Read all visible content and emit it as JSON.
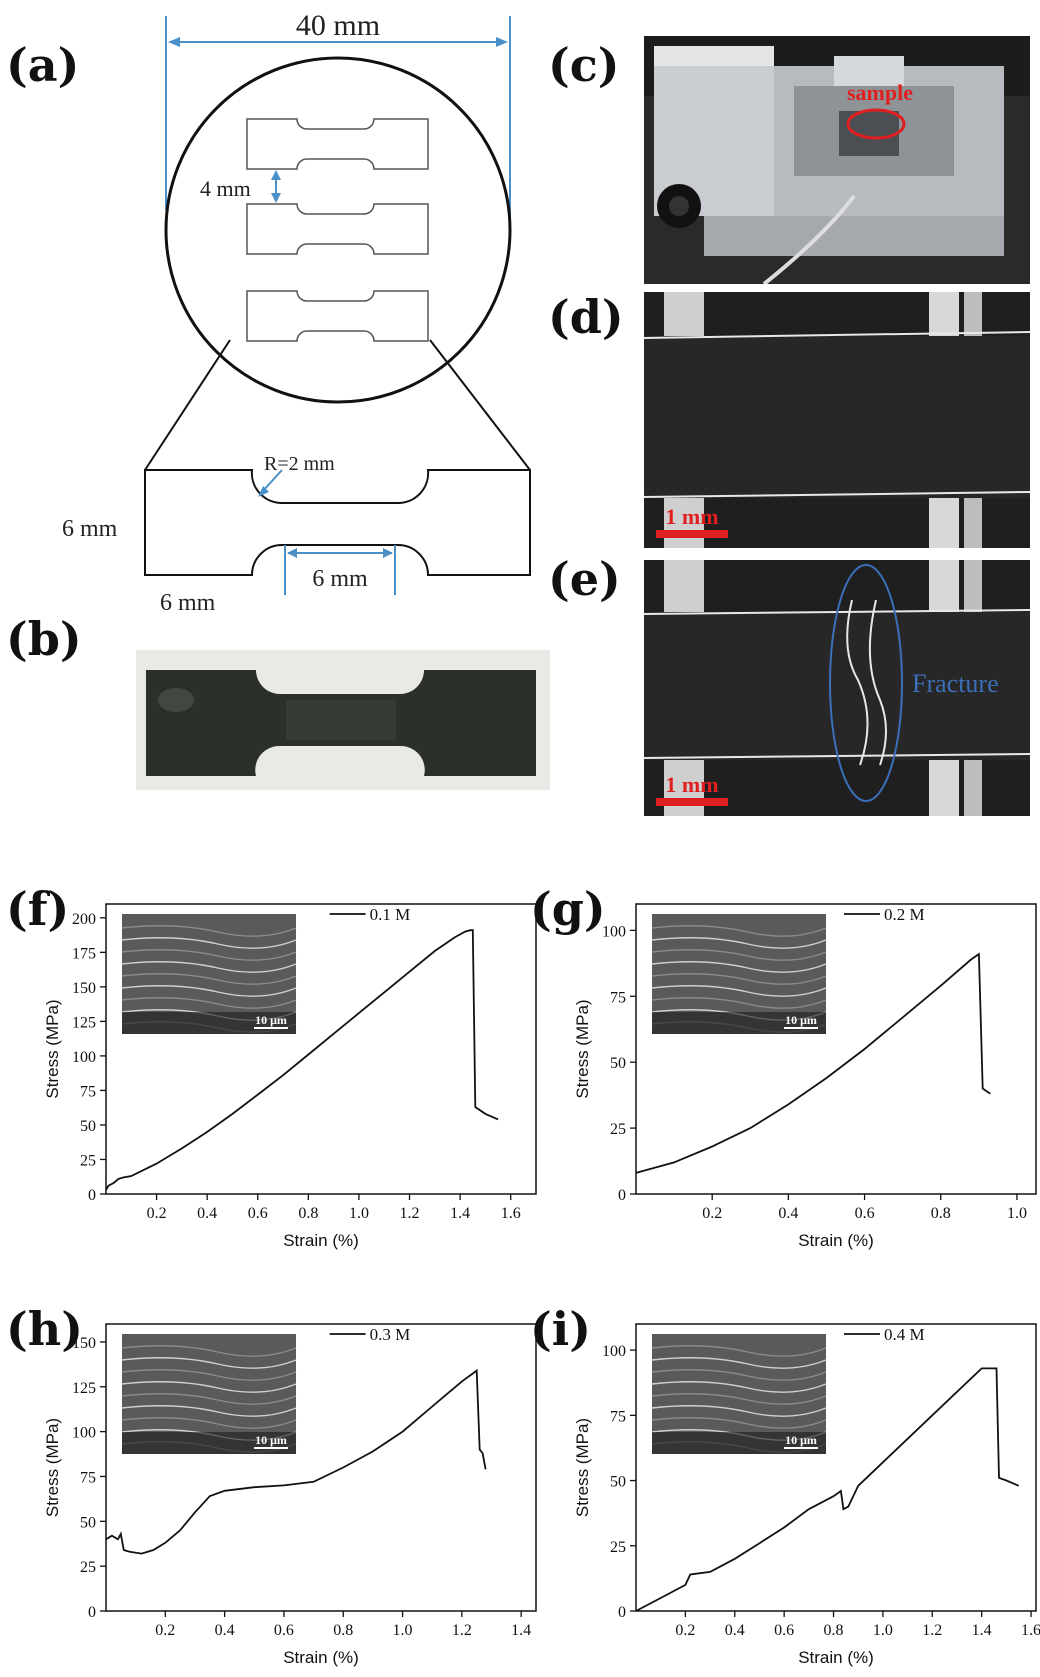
{
  "panels": {
    "a": "(a)",
    "b": "(b)",
    "c": "(c)",
    "d": "(d)",
    "e": "(e)",
    "f": "(f)",
    "g": "(g)",
    "h": "(h)",
    "i": "(i)"
  },
  "schematic": {
    "width_dim": "40 mm",
    "gap_dim": "4 mm",
    "radius_dim": "R=2 mm",
    "height_dim": "6 mm",
    "gauge_dim": "6 mm",
    "grip_dim": "6 mm"
  },
  "photos": {
    "c_label": "sample",
    "d_scale": "1 mm",
    "e_scale": "1 mm",
    "e_annotation": "Fracture"
  },
  "colors": {
    "dimension": "#4a90c8",
    "scalebar": "#e02020",
    "fracture": "#3b6fb8"
  },
  "chart_data": [
    {
      "id": "f",
      "type": "line",
      "legend": "0.1 M",
      "xlabel": "Strain (%)",
      "ylabel": "Stress (MPa)",
      "xlim": [
        0,
        1.7
      ],
      "ylim": [
        0,
        210
      ],
      "xticks": [
        "0.2",
        "0.4",
        "0.6",
        "0.8",
        "1.0",
        "1.2",
        "1.4",
        "1.6"
      ],
      "xtick_values": [
        0.2,
        0.4,
        0.6,
        0.8,
        1.0,
        1.2,
        1.4,
        1.6
      ],
      "yticks": [
        "0",
        "25",
        "50",
        "75",
        "100",
        "125",
        "150",
        "175",
        "200"
      ],
      "ytick_values": [
        0,
        25,
        50,
        75,
        100,
        125,
        150,
        175,
        200
      ],
      "inset_scale": "10 μm",
      "x": [
        0,
        0.01,
        0.03,
        0.05,
        0.07,
        0.1,
        0.2,
        0.3,
        0.4,
        0.5,
        0.6,
        0.7,
        0.8,
        0.9,
        1.0,
        1.1,
        1.2,
        1.3,
        1.38,
        1.42,
        1.44,
        1.45,
        1.46,
        1.5,
        1.55
      ],
      "y": [
        3,
        6,
        8,
        11,
        12,
        13,
        22,
        33,
        45,
        58,
        72,
        86,
        101,
        116,
        131,
        146,
        161,
        176,
        186,
        190,
        191,
        191,
        63,
        58,
        54
      ]
    },
    {
      "id": "g",
      "type": "line",
      "legend": "0.2 M",
      "xlabel": "Strain (%)",
      "ylabel": "Stress (MPa)",
      "xlim": [
        0,
        1.05
      ],
      "ylim": [
        0,
        110
      ],
      "xticks": [
        "0.2",
        "0.4",
        "0.6",
        "0.8",
        "1.0"
      ],
      "xtick_values": [
        0.2,
        0.4,
        0.6,
        0.8,
        1.0
      ],
      "yticks": [
        "0",
        "25",
        "50",
        "75",
        "100"
      ],
      "ytick_values": [
        0,
        25,
        50,
        75,
        100
      ],
      "inset_scale": "10 μm",
      "x": [
        0,
        0.1,
        0.2,
        0.3,
        0.4,
        0.5,
        0.6,
        0.7,
        0.8,
        0.88,
        0.9,
        0.91,
        0.92,
        0.93
      ],
      "y": [
        8,
        12,
        18,
        25,
        34,
        44,
        55,
        67,
        79,
        89,
        91,
        40,
        39,
        38
      ]
    },
    {
      "id": "h",
      "type": "line",
      "legend": "0.3 M",
      "xlabel": "Strain (%)",
      "ylabel": "Stress (MPa)",
      "xlim": [
        0,
        1.45
      ],
      "ylim": [
        0,
        160
      ],
      "xticks": [
        "0.2",
        "0.4",
        "0.6",
        "0.8",
        "1.0",
        "1.2",
        "1.4"
      ],
      "xtick_values": [
        0.2,
        0.4,
        0.6,
        0.8,
        1.0,
        1.2,
        1.4
      ],
      "yticks": [
        "0",
        "25",
        "50",
        "75",
        "100",
        "125",
        "150"
      ],
      "ytick_values": [
        0,
        25,
        50,
        75,
        100,
        125,
        150
      ],
      "inset_scale": "10 μm",
      "x": [
        0,
        0.02,
        0.04,
        0.05,
        0.06,
        0.08,
        0.12,
        0.16,
        0.2,
        0.25,
        0.3,
        0.35,
        0.4,
        0.5,
        0.6,
        0.7,
        0.8,
        0.9,
        1.0,
        1.1,
        1.2,
        1.25,
        1.26,
        1.27,
        1.28
      ],
      "y": [
        40,
        42,
        40,
        43,
        34,
        33,
        32,
        34,
        38,
        45,
        55,
        64,
        67,
        69,
        70,
        72,
        80,
        89,
        100,
        114,
        128,
        134,
        90,
        88,
        79
      ]
    },
    {
      "id": "i",
      "type": "line",
      "legend": "0.4 M",
      "xlabel": "Strain (%)",
      "ylabel": "Stress (MPa)",
      "xlim": [
        0,
        1.62
      ],
      "ylim": [
        0,
        110
      ],
      "xticks": [
        "0.2",
        "0.4",
        "0.6",
        "0.8",
        "1.0",
        "1.2",
        "1.4",
        "1.6"
      ],
      "xtick_values": [
        0.2,
        0.4,
        0.6,
        0.8,
        1.0,
        1.2,
        1.4,
        1.6
      ],
      "yticks": [
        "0",
        "25",
        "50",
        "75",
        "100"
      ],
      "ytick_values": [
        0,
        25,
        50,
        75,
        100
      ],
      "inset_scale": "10 μm",
      "x": [
        0,
        0.1,
        0.2,
        0.22,
        0.3,
        0.4,
        0.5,
        0.6,
        0.7,
        0.8,
        0.83,
        0.84,
        0.86,
        0.9,
        1.0,
        1.1,
        1.2,
        1.3,
        1.4,
        1.46,
        1.47,
        1.5,
        1.55
      ],
      "y": [
        0,
        5,
        10,
        14,
        15,
        20,
        26,
        32,
        39,
        44,
        46,
        39,
        40,
        48,
        57,
        66,
        75,
        84,
        93,
        93,
        51,
        50,
        48
      ]
    }
  ]
}
